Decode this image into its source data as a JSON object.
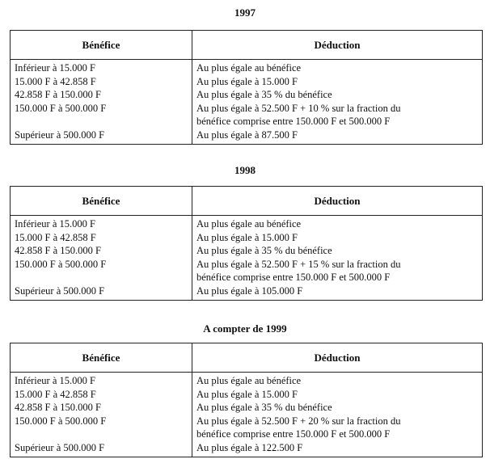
{
  "tables": [
    {
      "title": "1997",
      "headers": [
        "Bénéfice",
        "Déduction"
      ],
      "left": [
        "Inférieur à 15.000 F",
        "15.000 F à 42.858 F",
        "42.858 F à 150.000 F",
        "150.000 F à 500.000 F",
        "",
        "Supérieur à 500.000 F"
      ],
      "right": [
        "Au plus égale au bénéfice",
        "Au plus égale à 15.000 F",
        "Au plus égale à 35 % du bénéfice",
        "Au plus égale à 52.500 F + 10 % sur la fraction du",
        "bénéfice comprise entre 150.000 F et 500.000 F",
        "Au plus égale à 87.500 F"
      ]
    },
    {
      "title": "1998",
      "headers": [
        "Bénéfice",
        "Déduction"
      ],
      "left": [
        "Inférieur à 15.000 F",
        "15.000 F à 42.858 F",
        "42.858 F à 150.000 F",
        "150.000 F à 500.000 F",
        "",
        "Supérieur à 500.000 F"
      ],
      "right": [
        "Au plus égale au bénéfice",
        "Au plus égale à 15.000 F",
        "Au plus égale à 35 % du bénéfice",
        "Au plus égale à 52.500 F + 15 % sur la fraction du",
        "bénéfice comprise entre 150.000 F et 500.000 F",
        "Au plus égale à 105.000 F"
      ]
    },
    {
      "title": "A compter de 1999",
      "headers": [
        "Bénéfice",
        "Déduction"
      ],
      "left": [
        "Inférieur à 15.000 F",
        "15.000 F à 42.858 F",
        "42.858 F à 150.000 F",
        "150.000 F à 500.000 F",
        "",
        "Supérieur à 500.000 F"
      ],
      "right": [
        "Au plus égale au bénéfice",
        "Au plus égale à 15.000 F",
        "Au plus égale à 35 % du bénéfice",
        "Au plus égale à 52.500 F + 20 % sur la fraction du",
        "bénéfice comprise entre 150.000 F et 500.000 F",
        "Au plus égale à 122.500 F"
      ]
    }
  ]
}
